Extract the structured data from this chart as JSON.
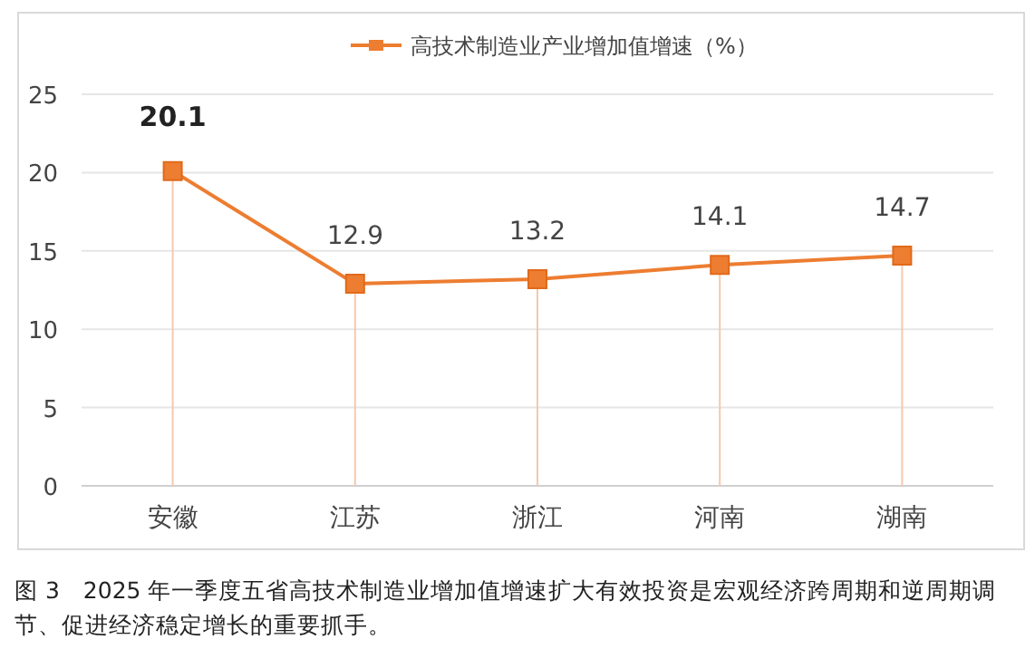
{
  "chart_data": {
    "type": "line",
    "categories": [
      "安徽",
      "江苏",
      "浙江",
      "河南",
      "湖南"
    ],
    "series": [
      {
        "name": "高技术制造业产业增加值增速（%）",
        "color": "#ed7d31",
        "values": [
          20.1,
          12.9,
          13.2,
          14.1,
          14.7
        ],
        "errors": [
          [
            0,
            20.1
          ],
          [
            0,
            12.9
          ],
          [
            0,
            13.2
          ],
          [
            0,
            14.1
          ],
          [
            0,
            14.7
          ]
        ]
      }
    ],
    "marker": "square",
    "ylim": [
      0,
      25
    ],
    "yticks": [
      0,
      5,
      10,
      15,
      20,
      25
    ],
    "grid": "y",
    "legend": "top",
    "data_labels": true,
    "annotations": [
      "图 3　2025 年一季度五省高技术制造业增加值增速扩大有效投资是宏观经济跨周期和逆周期调节、促进经济稳定增长的重要抓手。"
    ]
  }
}
